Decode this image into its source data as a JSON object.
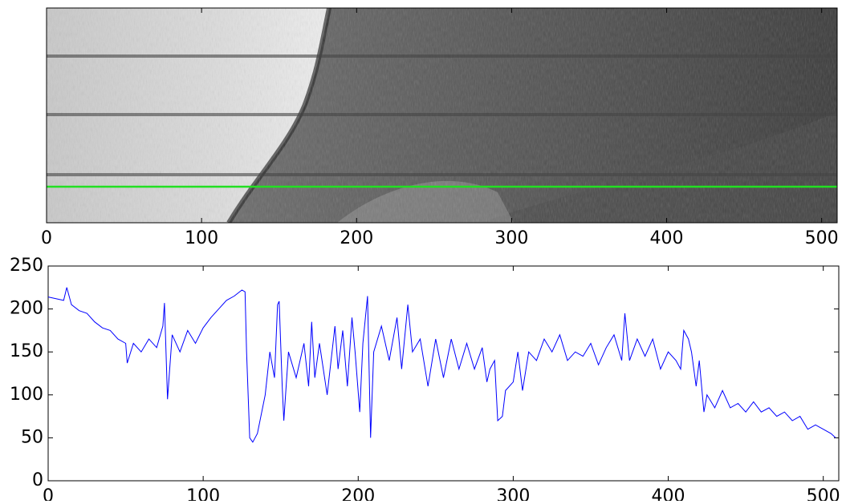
{
  "chart_data": [
    {
      "type": "image",
      "xlim": [
        0,
        510
      ],
      "xticks": [
        0,
        100,
        200,
        300,
        400,
        500
      ]
    },
    {
      "type": "line",
      "color": "#0000ff",
      "xlim": [
        0,
        510
      ],
      "xticks": [
        0,
        100,
        200,
        300,
        400,
        500
      ],
      "ylim": [
        0,
        250
      ],
      "yticks": [
        0,
        50,
        100,
        150,
        200,
        250
      ],
      "x": [
        0,
        5,
        10,
        12,
        15,
        20,
        25,
        30,
        35,
        40,
        45,
        50,
        51,
        55,
        60,
        65,
        70,
        74,
        75,
        77,
        80,
        85,
        90,
        95,
        100,
        105,
        110,
        115,
        120,
        125,
        127,
        128,
        130,
        132,
        135,
        140,
        143,
        146,
        148,
        149,
        151,
        152,
        155,
        160,
        165,
        168,
        170,
        172,
        175,
        180,
        185,
        187,
        190,
        193,
        196,
        198,
        201,
        203,
        206,
        208,
        210,
        215,
        220,
        225,
        228,
        232,
        235,
        240,
        245,
        250,
        255,
        260,
        265,
        270,
        275,
        280,
        283,
        285,
        288,
        290,
        293,
        295,
        300,
        303,
        306,
        310,
        315,
        320,
        325,
        330,
        335,
        340,
        345,
        350,
        355,
        360,
        365,
        370,
        372,
        375,
        380,
        385,
        390,
        395,
        400,
        405,
        408,
        410,
        413,
        415,
        418,
        420,
        423,
        425,
        430,
        435,
        440,
        445,
        450,
        455,
        460,
        465,
        470,
        475,
        480,
        485,
        490,
        495,
        500,
        505,
        508
      ],
      "values": [
        214,
        212,
        210,
        225,
        205,
        198,
        195,
        185,
        178,
        175,
        165,
        160,
        137,
        160,
        150,
        165,
        155,
        180,
        207,
        95,
        170,
        150,
        175,
        160,
        178,
        190,
        200,
        210,
        215,
        222,
        220,
        150,
        50,
        45,
        55,
        100,
        150,
        120,
        205,
        209,
        110,
        70,
        150,
        120,
        160,
        110,
        185,
        120,
        160,
        100,
        180,
        130,
        175,
        110,
        190,
        150,
        80,
        160,
        215,
        50,
        150,
        180,
        140,
        190,
        130,
        205,
        150,
        165,
        110,
        165,
        120,
        165,
        130,
        160,
        130,
        155,
        115,
        130,
        140,
        70,
        75,
        105,
        115,
        150,
        105,
        150,
        140,
        165,
        150,
        170,
        140,
        150,
        145,
        160,
        135,
        155,
        170,
        140,
        195,
        140,
        165,
        145,
        165,
        130,
        150,
        140,
        130,
        175,
        165,
        150,
        110,
        140,
        80,
        100,
        85,
        105,
        85,
        90,
        80,
        92,
        80,
        85,
        75,
        80,
        70,
        75,
        60,
        65,
        60,
        55,
        50
      ]
    }
  ]
}
